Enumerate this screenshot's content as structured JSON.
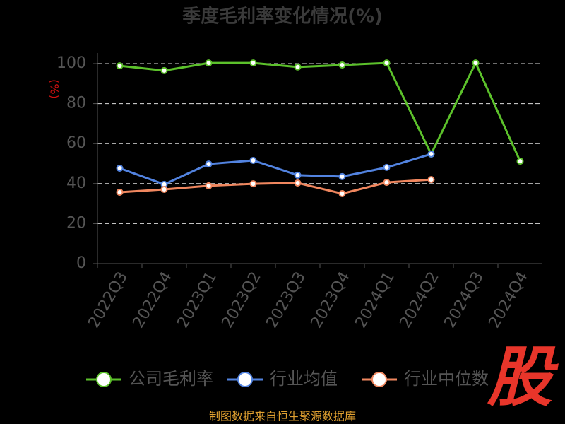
{
  "chart_data": {
    "type": "line",
    "title": "季度毛利率变化情况(%)",
    "y_label": "(%)",
    "categories": [
      "2022Q3",
      "2022Q4",
      "2023Q1",
      "2023Q2",
      "2023Q3",
      "2023Q4",
      "2024Q1",
      "2024Q2",
      "2024Q3",
      "2024Q4"
    ],
    "series": [
      {
        "name": "公司毛利率",
        "color": "#5cc12b",
        "values": [
          98.9,
          96.5,
          100.3,
          100.3,
          98.3,
          99.3,
          100.3,
          54.8,
          100.3,
          51.2
        ]
      },
      {
        "name": "行业均值",
        "color": "#5283e0",
        "values": [
          47.7,
          39.6,
          49.8,
          51.6,
          44.2,
          43.5,
          48.1,
          54.8,
          null,
          null
        ]
      },
      {
        "name": "行业中位数",
        "color": "#f0875f",
        "values": [
          35.7,
          37.1,
          38.9,
          39.9,
          40.3,
          35.0,
          40.6,
          42.0,
          null,
          null
        ]
      }
    ],
    "ylim": [
      0,
      100
    ],
    "yticks": [
      0,
      20,
      40,
      60,
      80,
      100
    ],
    "grid": true,
    "source": "制图数据来自恒生聚源数据库",
    "watermark": "股"
  }
}
